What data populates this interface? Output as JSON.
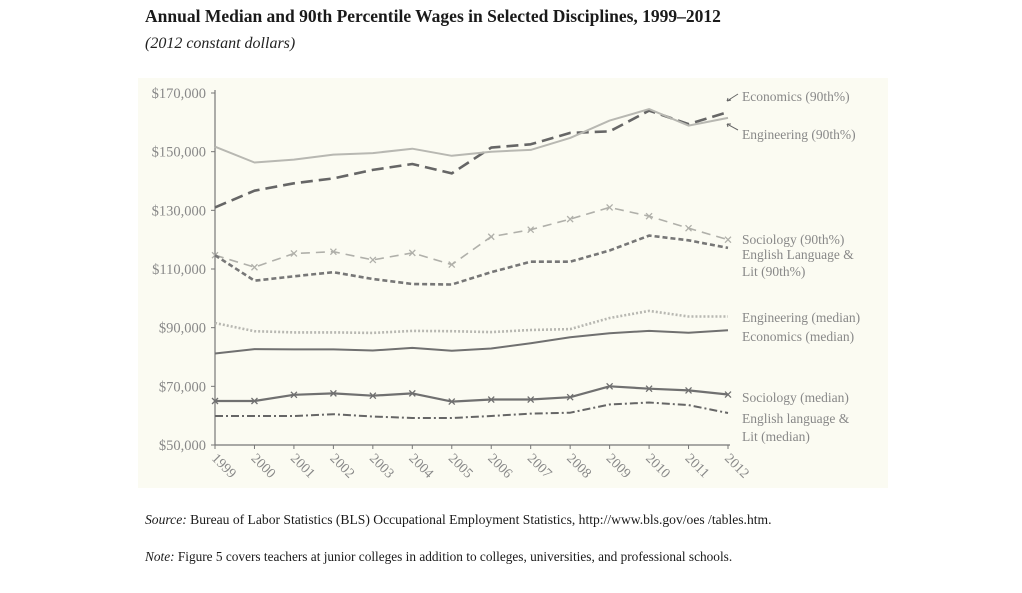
{
  "chart_data": {
    "type": "line",
    "title": "Annual Median and 90th Percentile Wages in Selected Disciplines, 1999–2012",
    "subtitle": "(2012 constant dollars)",
    "xlabel": "",
    "ylabel": "",
    "x": [
      1999,
      2000,
      2001,
      2002,
      2003,
      2004,
      2005,
      2006,
      2007,
      2008,
      2009,
      2010,
      2011,
      2012
    ],
    "ylim": [
      50000,
      170000
    ],
    "yticks": [
      "$170,000",
      "$150,000",
      "$130,000",
      "$110,000",
      "$90,000",
      "$70,000",
      "$50,000"
    ],
    "ytick_values": [
      170000,
      150000,
      130000,
      110000,
      90000,
      70000,
      50000
    ],
    "grid": false,
    "legend": "direct labels at right",
    "series": [
      {
        "name": "Economics (90th%)",
        "color": "#666666",
        "style": "long-dash",
        "values": [
          131000,
          136700,
          139200,
          140900,
          143800,
          145800,
          142600,
          151400,
          152500,
          156400,
          156900,
          164000,
          159400,
          163500
        ]
      },
      {
        "name": "Engineering (90th%)",
        "color": "#b8b8b2",
        "style": "solid",
        "values": [
          151700,
          146300,
          147300,
          149000,
          149500,
          151000,
          148600,
          150000,
          150600,
          154700,
          160600,
          164500,
          158900,
          161500
        ]
      },
      {
        "name": "Sociology (90th%)",
        "color": "#b0b0aa",
        "style": "dash-x",
        "values": [
          114700,
          110600,
          115300,
          115900,
          113100,
          115500,
          111500,
          121000,
          123400,
          127000,
          131000,
          128000,
          123900,
          120000
        ]
      },
      {
        "name": "English Language & Lit (90th%)",
        "color": "#777777",
        "style": "short-dash",
        "values": [
          114700,
          106000,
          107500,
          108900,
          106600,
          104900,
          104700,
          108900,
          112500,
          112500,
          116300,
          121400,
          119800,
          117200
        ]
      },
      {
        "name": "Engineering (median)",
        "color": "#b8b8b2",
        "style": "dotted",
        "values": [
          91600,
          88800,
          88400,
          88400,
          88200,
          88900,
          88800,
          88500,
          89200,
          89500,
          93300,
          95700,
          93800,
          93800
        ]
      },
      {
        "name": "Economics (median)",
        "color": "#707070",
        "style": "solid",
        "values": [
          81200,
          82700,
          82600,
          82600,
          82200,
          83100,
          82100,
          82900,
          84700,
          86700,
          88100,
          88900,
          88300,
          89100
        ]
      },
      {
        "name": "Sociology (median)",
        "color": "#707070",
        "style": "solid-x",
        "values": [
          65000,
          65000,
          67100,
          67600,
          66800,
          67600,
          64800,
          65500,
          65500,
          66300,
          70000,
          69200,
          68600,
          67200
        ]
      },
      {
        "name": "English language & Lit (median)",
        "color": "#666666",
        "style": "dash-dot",
        "values": [
          59900,
          59900,
          59900,
          60500,
          59700,
          59200,
          59200,
          59900,
          60700,
          61000,
          63800,
          64500,
          63600,
          60900
        ]
      }
    ],
    "labels": [
      {
        "lines": [
          "Economics (90th%)"
        ]
      },
      {
        "lines": [
          "Engineering (90th%)"
        ]
      },
      {
        "lines": [
          "Sociology (90th%)"
        ]
      },
      {
        "lines": [
          "English Language &",
          "Lit (90th%)"
        ]
      },
      {
        "lines": [
          "Engineering (median)"
        ]
      },
      {
        "lines": [
          "Economics (median)"
        ]
      },
      {
        "lines": [
          "Sociology (median)"
        ]
      },
      {
        "lines": [
          "English language &",
          "Lit (median)"
        ]
      }
    ]
  },
  "footer": {
    "source_label": "Source:",
    "source_text": " Bureau of Labor Statistics (BLS) Occupational Employment Statistics, http://www.bls.gov/oes /tables.htm.",
    "note_label": "Note:",
    "note_text": " Figure 5 covers teachers at junior colleges in addition to colleges, universities, and professional schools."
  }
}
